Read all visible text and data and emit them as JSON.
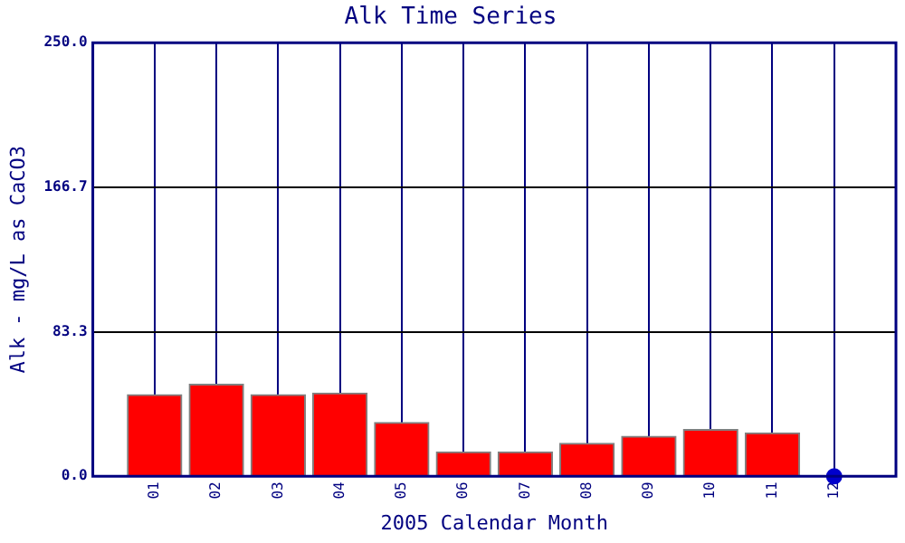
{
  "chart_data": {
    "type": "bar",
    "title": "Alk Time Series",
    "xlabel": "2005 Calendar Month",
    "ylabel": "Alk - mg/L as CaCO3",
    "categories": [
      "01",
      "02",
      "03",
      "04",
      "05",
      "06",
      "07",
      "08",
      "09",
      "10",
      "11",
      "12"
    ],
    "series": [
      {
        "color": "#ff0000",
        "values": [
          47,
          53,
          47,
          48,
          31,
          14,
          14,
          19,
          23,
          27,
          25,
          null
        ]
      },
      {
        "type": "scatter",
        "color": "#0000cc",
        "x": [
          "12"
        ],
        "values": [
          0
        ]
      }
    ],
    "ylim": [
      0,
      250
    ],
    "yticks": [
      {
        "value": 0,
        "label": "0.0"
      },
      83.3,
      166.7,
      {
        "value": 250,
        "label": "250.0"
      }
    ],
    "grid": true,
    "legend": false,
    "marker": "circle"
  }
}
